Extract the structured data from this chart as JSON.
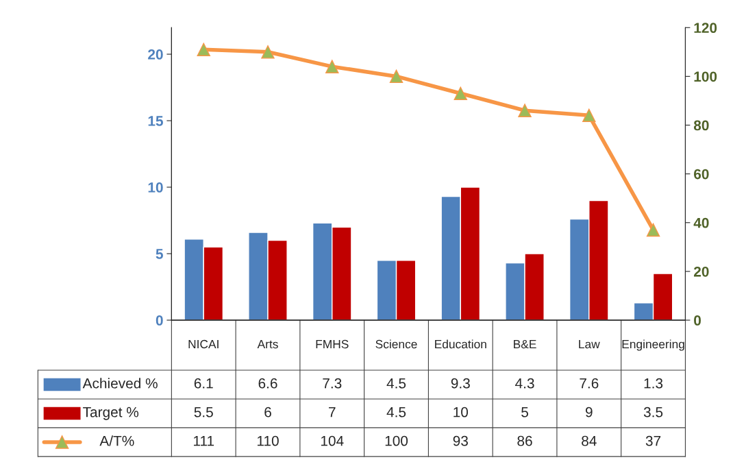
{
  "chart_data": {
    "type": "bar",
    "categories": [
      "NICAI",
      "Arts",
      "FMHS",
      "Science",
      "Education",
      "B&E",
      "Law",
      "Engineering"
    ],
    "series": [
      {
        "name": "Achieved %",
        "color": "#4f81bd",
        "values": [
          6.1,
          6.6,
          7.3,
          4.5,
          9.3,
          4.3,
          7.6,
          1.3
        ]
      },
      {
        "name": "Target %",
        "color": "#c00000",
        "values": [
          5.5,
          6,
          7,
          4.5,
          10,
          5,
          9,
          3.5
        ]
      },
      {
        "name": "A/T%",
        "type": "line",
        "axis": "y2",
        "color": "#f79646",
        "marker": "triangle",
        "values": [
          111,
          110,
          104,
          100,
          93,
          86,
          84,
          37
        ]
      }
    ],
    "ylim": [
      0,
      22
    ],
    "yticks": [
      0,
      5,
      10,
      15,
      20
    ],
    "y2lim": [
      0,
      120
    ],
    "y2ticks": [
      0,
      20,
      40,
      60,
      80,
      100,
      120
    ],
    "data_labels": true,
    "legend": "bottom",
    "grid": false
  }
}
